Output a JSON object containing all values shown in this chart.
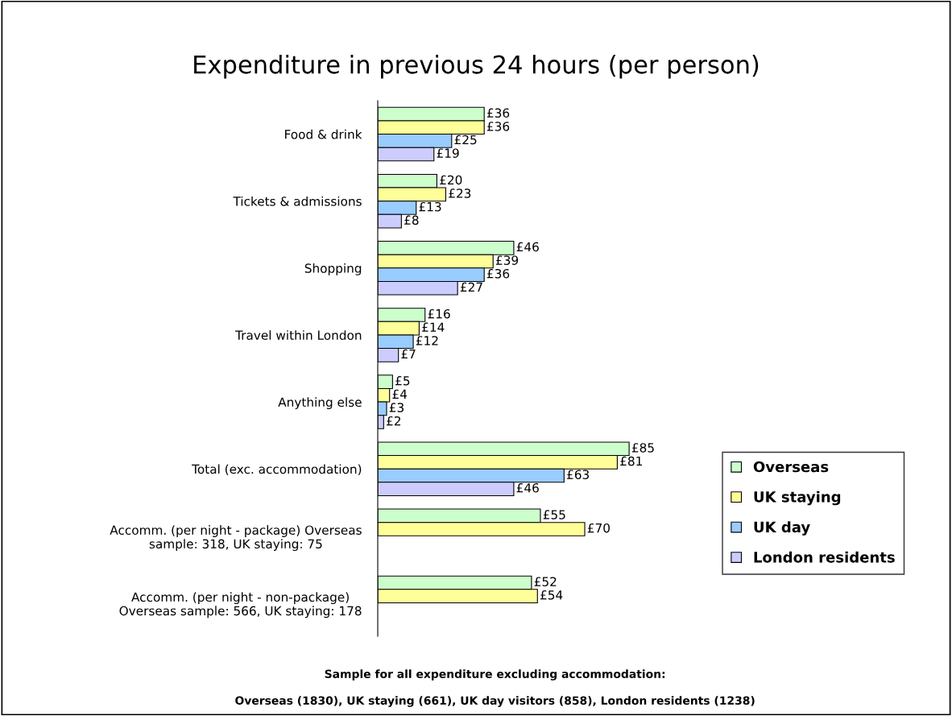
{
  "chart_data": {
    "type": "bar",
    "orientation": "horizontal",
    "title": "Expenditure in previous 24 hours (per person)",
    "categories": [
      "Food & drink",
      "Tickets & admissions",
      "Shopping",
      "Travel within London",
      "Anything else",
      "Total (exc. accommodation)",
      "Accomm. (per night - package) Overseas\nsample: 318, UK staying: 75",
      "Accomm. (per night - non-package)\nOverseas sample: 566, UK staying: 178"
    ],
    "series": [
      {
        "name": "Overseas",
        "color": "#ccffcc",
        "values": [
          36,
          20,
          46,
          16,
          5,
          85,
          55,
          52
        ],
        "value_labels": [
          "£36",
          "£20",
          "£46",
          "£16",
          "£5",
          "£85",
          "£55",
          "£52"
        ]
      },
      {
        "name": "UK staying",
        "color": "#ffff99",
        "values": [
          36,
          23,
          39,
          14,
          4,
          81,
          70,
          54
        ],
        "value_labels": [
          "£36",
          "£23",
          "£39",
          "£14",
          "£4",
          "£81",
          "£70",
          "£54"
        ]
      },
      {
        "name": "UK day",
        "color": "#99ccff",
        "values": [
          25,
          13,
          36,
          12,
          3,
          63,
          null,
          null
        ],
        "value_labels": [
          "£25",
          "£13",
          "£36",
          "£12",
          "£3",
          "£63",
          null,
          null
        ]
      },
      {
        "name": "London residents",
        "color": "#ccccff",
        "values": [
          19,
          8,
          27,
          7,
          2,
          46,
          null,
          null
        ],
        "value_labels": [
          "£19",
          "£8",
          "£27",
          "£7",
          "£2",
          "£46",
          null,
          null
        ]
      }
    ],
    "legend": "right",
    "grid": false,
    "tick_labels": "y",
    "annotations": [
      "Sample for all expenditure excluding accommodation:",
      "Overseas (1830), UK staying (661), UK day visitors (858), London residents (1238)"
    ]
  }
}
